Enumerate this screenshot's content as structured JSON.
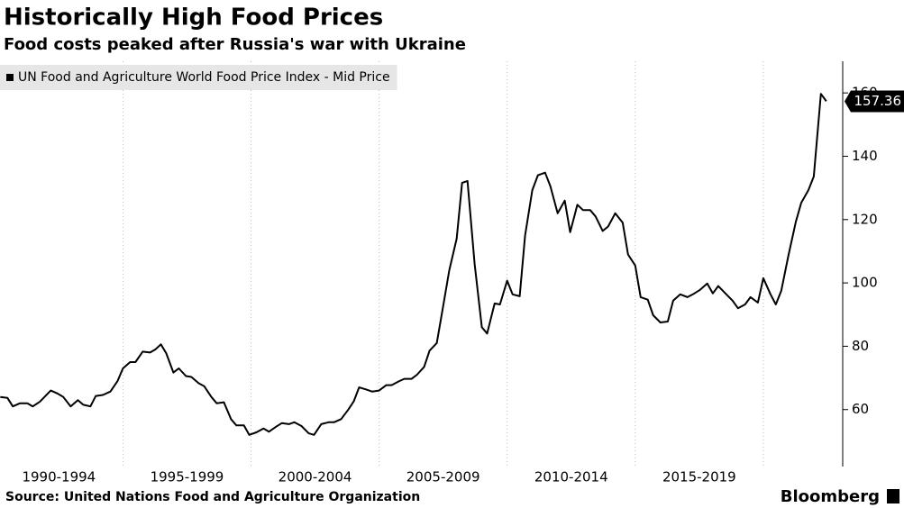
{
  "chart_data": {
    "type": "line",
    "title": "Historically High Food Prices",
    "subtitle": "Food costs peaked after Russia's war with Ukraine",
    "source": "Source: United Nations Food and Agriculture Organization",
    "brand": "Bloomberg",
    "legend_position": "top-left",
    "series": [
      {
        "name": "UN Food and Agriculture World Food Price Index - Mid Price",
        "color": "#000000",
        "x": [
          1990.21,
          1990.49,
          1990.7,
          1990.98,
          1991.27,
          1991.48,
          1991.76,
          1992.18,
          1992.46,
          1992.67,
          1992.96,
          1993.24,
          1993.45,
          1993.73,
          1993.94,
          1994.22,
          1994.51,
          1994.79,
          1995.0,
          1995.28,
          1995.49,
          1995.77,
          1996.06,
          1996.27,
          1996.48,
          1996.69,
          1996.97,
          1997.18,
          1997.46,
          1997.67,
          1997.96,
          1998.17,
          1998.45,
          1998.66,
          1998.94,
          1999.22,
          1999.43,
          1999.72,
          1999.93,
          2000.21,
          2000.49,
          2000.7,
          2000.98,
          2001.2,
          2001.48,
          2001.69,
          2001.97,
          2002.25,
          2002.46,
          2002.74,
          2003.03,
          2003.24,
          2003.52,
          2003.8,
          2004.01,
          2004.22,
          2004.51,
          2004.72,
          2005.0,
          2005.28,
          2005.49,
          2005.77,
          2005.98,
          2006.27,
          2006.48,
          2006.76,
          2006.97,
          2007.25,
          2007.46,
          2007.74,
          2008.03,
          2008.24,
          2008.45,
          2008.73,
          2009.01,
          2009.22,
          2009.51,
          2009.72,
          2010.0,
          2010.21,
          2010.49,
          2010.7,
          2010.98,
          2011.2,
          2011.48,
          2011.69,
          2011.97,
          2012.25,
          2012.46,
          2012.74,
          2012.96,
          2013.24,
          2013.45,
          2013.73,
          2013.94,
          2014.22,
          2014.51,
          2014.72,
          2015.0,
          2015.21,
          2015.49,
          2015.7,
          2015.98,
          2016.27,
          2016.48,
          2016.76,
          2017.04,
          2017.25,
          2017.53,
          2017.81,
          2018.03,
          2018.24,
          2018.52,
          2018.8,
          2019.01,
          2019.29,
          2019.5,
          2019.79,
          2020.0,
          2020.28,
          2020.49,
          2020.7,
          2020.98,
          2021.27,
          2021.48,
          2021.76,
          2021.97,
          2022.25,
          2022.46
        ],
        "values": [
          64,
          63.7,
          61,
          62,
          62,
          61,
          62.5,
          66,
          65,
          64,
          61,
          63,
          61.5,
          61,
          64.3,
          64.6,
          65.7,
          69,
          73,
          75,
          75,
          78.3,
          78,
          79,
          80.6,
          77.8,
          71.7,
          73,
          70.6,
          70.3,
          68.3,
          67.4,
          64,
          62,
          62.3,
          57,
          55,
          55,
          52,
          52.8,
          54,
          53,
          54.6,
          55.7,
          55.4,
          56,
          54.8,
          52.5,
          52,
          55.4,
          56,
          56,
          57,
          60,
          62.6,
          67,
          66.3,
          65.7,
          66,
          67.7,
          67.7,
          68.9,
          69.7,
          69.7,
          71,
          73.5,
          78.6,
          81,
          90.7,
          104,
          114,
          131.6,
          132.2,
          106,
          86,
          84,
          93.5,
          93.2,
          100.7,
          96.4,
          95.8,
          115,
          129.3,
          134,
          134.8,
          130.5,
          122,
          126,
          116,
          124.7,
          123,
          123,
          121,
          116.4,
          117.8,
          122,
          119,
          109,
          105.5,
          95.5,
          94.7,
          89.8,
          87.5,
          87.8,
          94.4,
          96.4,
          95.5,
          96.4,
          97.8,
          99.8,
          96.7,
          99,
          96.7,
          94.4,
          92,
          93.2,
          95.5,
          93.8,
          101.5,
          96.4,
          93.2,
          97.5,
          108.7,
          119.3,
          125.3,
          129.3,
          133.6,
          159.7,
          157.36
        ]
      }
    ],
    "xlim": [
      1990.2,
      2023.1
    ],
    "xticks": [
      {
        "value": 1995,
        "label": "1990-1994"
      },
      {
        "value": 2000,
        "label": "1995-1999"
      },
      {
        "value": 2005,
        "label": "2000-2004"
      },
      {
        "value": 2010,
        "label": "2005-2009"
      },
      {
        "value": 2015,
        "label": "2010-2014"
      },
      {
        "value": 2020,
        "label": "2015-2019"
      }
    ],
    "ylim": [
      42,
      170
    ],
    "yticks": [
      60,
      80,
      100,
      120,
      140,
      160
    ],
    "grid": "x"
  }
}
